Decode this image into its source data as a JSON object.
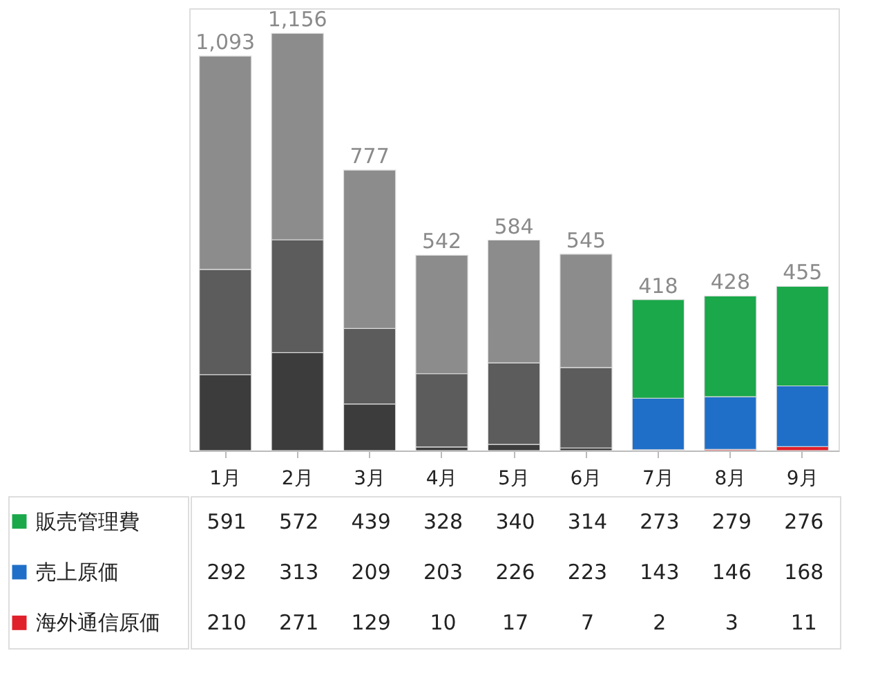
{
  "chart_data": {
    "type": "bar",
    "stacked": true,
    "data_labels": true,
    "legend": "bottom left",
    "categories": [
      "1月",
      "2月",
      "3月",
      "4月",
      "5月",
      "6月",
      "7月",
      "8月",
      "9月"
    ],
    "series": [
      {
        "name": "海外通信原価",
        "colors": [
          "#3c3c3c",
          "#3c3c3c",
          "#3c3c3c",
          "#3c3c3c",
          "#3c3c3c",
          "#3c3c3c",
          "#e0202a",
          "#e0202a",
          "#e0202a"
        ],
        "values": [
          210,
          271,
          129,
          10,
          17,
          7,
          2,
          3,
          11
        ]
      },
      {
        "name": "売上原価",
        "colors": [
          "#5c5c5c",
          "#5c5c5c",
          "#5c5c5c",
          "#5c5c5c",
          "#5c5c5c",
          "#5c5c5c",
          "#1f6fc8",
          "#1f6fc8",
          "#1f6fc8"
        ],
        "values": [
          292,
          313,
          209,
          203,
          226,
          223,
          143,
          146,
          168
        ]
      },
      {
        "name": "販売管理費",
        "colors": [
          "#8c8c8c",
          "#8c8c8c",
          "#8c8c8c",
          "#8c8c8c",
          "#8c8c8c",
          "#8c8c8c",
          "#1aa84a",
          "#1aa84a",
          "#1aa84a"
        ],
        "values": [
          591,
          572,
          439,
          328,
          340,
          314,
          273,
          279,
          276
        ]
      }
    ],
    "totals": [
      "1,093",
      "1,156",
      "777",
      "542",
      "584",
      "545",
      "418",
      "428",
      "455"
    ]
  }
}
